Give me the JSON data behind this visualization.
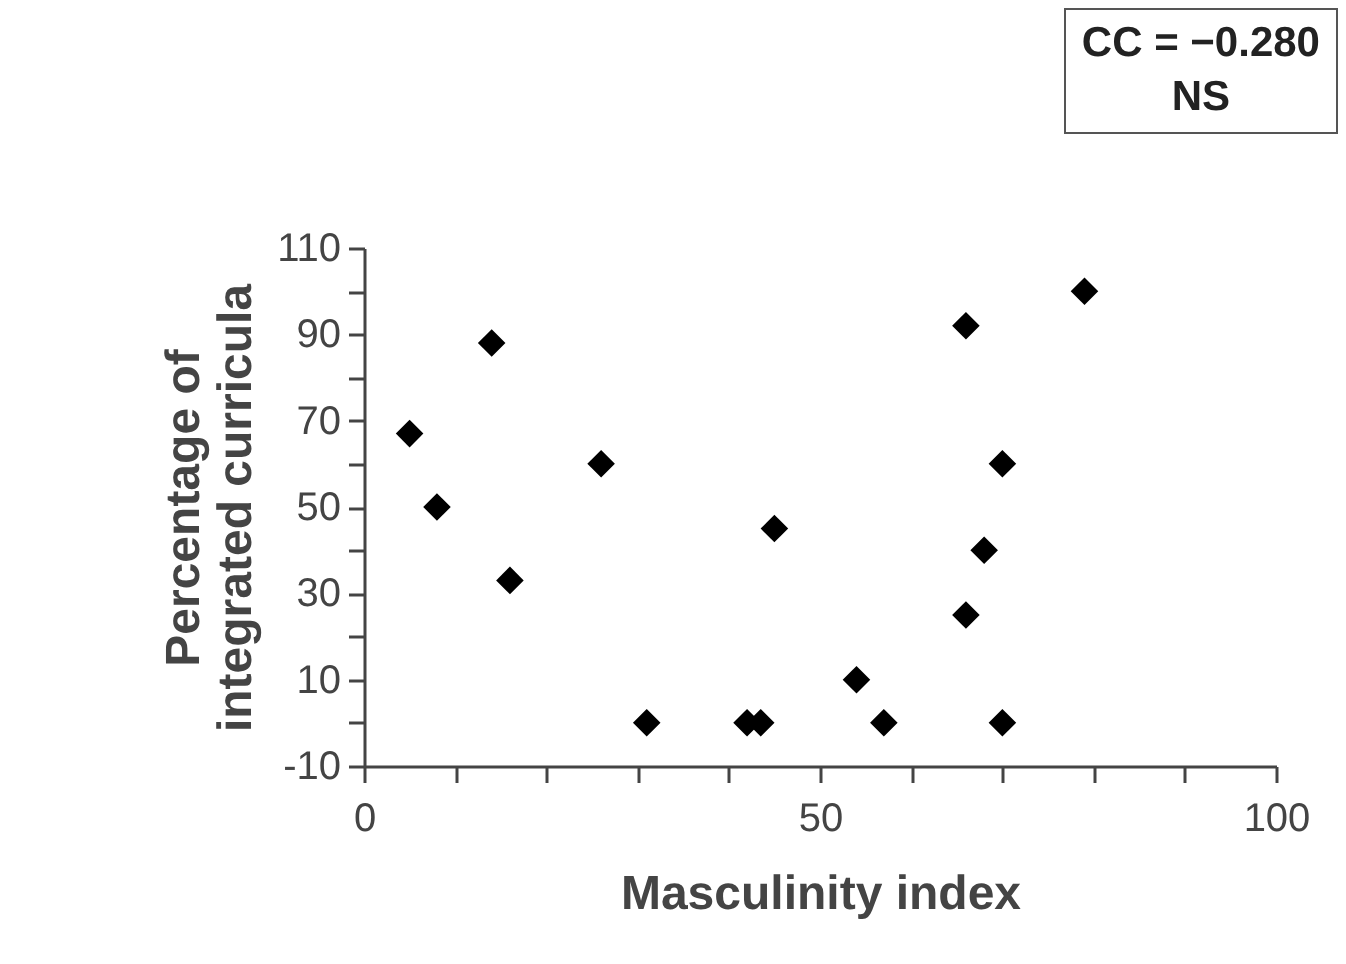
{
  "chart_data": {
    "type": "scatter",
    "xlabel": "Masculinity index",
    "ylabel": "Percentage of integrated curricula",
    "annotations": [
      "CC = −0.280",
      "NS"
    ],
    "x": [
      5,
      8,
      14,
      16,
      26,
      31,
      42,
      43.5,
      45,
      54,
      57,
      66,
      66,
      68,
      70,
      70,
      79
    ],
    "series": [
      {
        "color": "#000000",
        "values": [
          67,
          50,
          88,
          33,
          60,
          0,
          0,
          0,
          45,
          10,
          0,
          92,
          25,
          40,
          60,
          0,
          100
        ]
      }
    ],
    "xlim": [
      0,
      100
    ],
    "xticks": [
      0,
      {
        "value": 10,
        "label": null
      },
      {
        "value": 20,
        "label": null
      },
      {
        "value": 30,
        "label": null
      },
      {
        "value": 40,
        "label": null
      },
      50,
      {
        "value": 60,
        "label": null
      },
      {
        "value": 70,
        "label": null
      },
      {
        "value": 80,
        "label": null
      },
      {
        "value": 90,
        "label": null
      },
      100
    ],
    "ylim": [
      -10,
      110
    ],
    "yticks": [
      -10,
      {
        "value": 0,
        "label": null
      },
      10,
      {
        "value": 20,
        "label": null
      },
      30,
      {
        "value": 40,
        "label": null
      },
      50,
      {
        "value": 60,
        "label": null
      },
      70,
      {
        "value": 80,
        "label": null
      },
      90,
      {
        "value": 100,
        "label": null
      },
      110
    ],
    "marker": "diamond",
    "grid": false,
    "legend": false
  }
}
